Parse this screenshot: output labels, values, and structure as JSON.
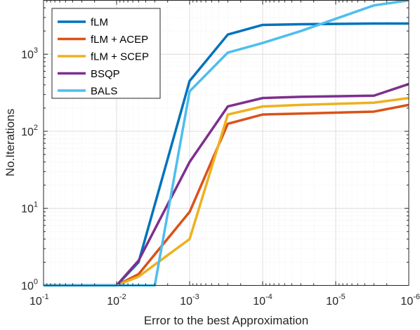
{
  "chart_data": {
    "type": "line",
    "xlabel": "Error to the best Approximation",
    "ylabel": "No.Iterations",
    "xscale": "log",
    "yscale": "log",
    "x_reversed": true,
    "xlim": [
      0.1,
      1e-06
    ],
    "ylim": [
      1,
      5000
    ],
    "grid": true,
    "minor_grid": true,
    "legend_position": "top-left",
    "x_ticks": [
      {
        "base": "10",
        "exp": "-1",
        "value": 0.1
      },
      {
        "base": "10",
        "exp": "-2",
        "value": 0.01
      },
      {
        "base": "10",
        "exp": "-3",
        "value": 0.001
      },
      {
        "base": "10",
        "exp": "-4",
        "value": 0.0001
      },
      {
        "base": "10",
        "exp": "-5",
        "value": 1e-05
      },
      {
        "base": "10",
        "exp": "-6",
        "value": 1e-06
      }
    ],
    "y_ticks": [
      {
        "base": "10",
        "exp": "0",
        "value": 1
      },
      {
        "base": "10",
        "exp": "1",
        "value": 10
      },
      {
        "base": "10",
        "exp": "2",
        "value": 100
      },
      {
        "base": "10",
        "exp": "3",
        "value": 1000
      }
    ],
    "series": [
      {
        "name": "fLM",
        "color": "#0072BD",
        "points": [
          [
            0.1,
            1
          ],
          [
            0.01,
            1
          ],
          [
            0.005,
            2
          ],
          [
            0.001,
            450
          ],
          [
            0.0003,
            1800
          ],
          [
            0.0001,
            2400
          ],
          [
            3e-05,
            2450
          ],
          [
            3e-06,
            2500
          ],
          [
            1e-06,
            2500
          ]
        ]
      },
      {
        "name": "fLM + ACEP",
        "color": "#D95319",
        "points": [
          [
            0.1,
            1
          ],
          [
            0.01,
            1
          ],
          [
            0.005,
            1.4
          ],
          [
            0.001,
            9
          ],
          [
            0.0003,
            125
          ],
          [
            0.0001,
            165
          ],
          [
            3e-05,
            170
          ],
          [
            3e-06,
            180
          ],
          [
            1e-06,
            220
          ]
        ]
      },
      {
        "name": "fLM + SCEP",
        "color": "#EDB120",
        "points": [
          [
            0.1,
            1
          ],
          [
            0.01,
            1
          ],
          [
            0.005,
            1.3
          ],
          [
            0.001,
            4
          ],
          [
            0.0003,
            165
          ],
          [
            0.0001,
            210
          ],
          [
            3e-05,
            220
          ],
          [
            3e-06,
            235
          ],
          [
            1e-06,
            270
          ]
        ]
      },
      {
        "name": "BSQP",
        "color": "#7E2F8E",
        "points": [
          [
            0.1,
            1
          ],
          [
            0.01,
            1
          ],
          [
            0.005,
            2.1
          ],
          [
            0.001,
            40
          ],
          [
            0.0003,
            210
          ],
          [
            0.0001,
            270
          ],
          [
            3e-05,
            280
          ],
          [
            3e-06,
            290
          ],
          [
            1e-06,
            410
          ]
        ]
      },
      {
        "name": "BALS",
        "color": "#4DBEEE",
        "points": [
          [
            0.1,
            1
          ],
          [
            0.01,
            1
          ],
          [
            0.003,
            1
          ],
          [
            0.001,
            330
          ],
          [
            0.0003,
            1050
          ],
          [
            0.0001,
            1400
          ],
          [
            3e-05,
            2000
          ],
          [
            3e-06,
            4300
          ],
          [
            1e-06,
            5000
          ]
        ]
      }
    ]
  }
}
